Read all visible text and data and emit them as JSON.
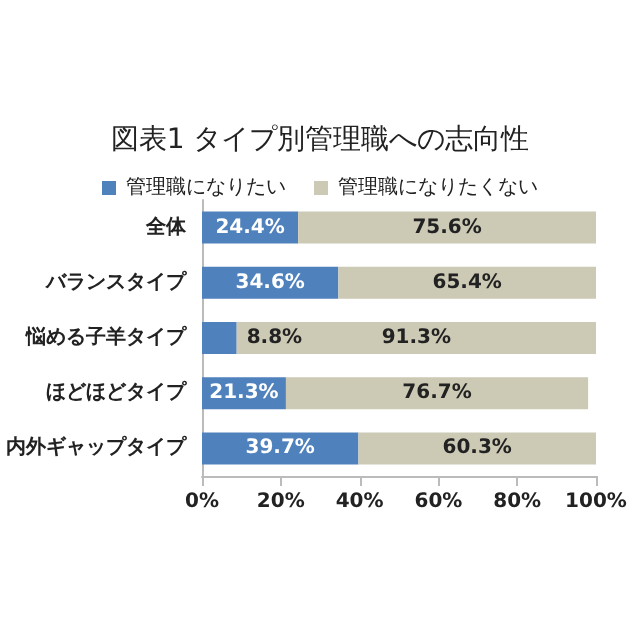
{
  "chart_data": {
    "type": "bar",
    "orientation": "horizontal",
    "stacked": true,
    "title": "図表1 タイプ別管理職への志向性",
    "categories": [
      "全体",
      "バランスタイプ",
      "悩める子羊タイプ",
      "ほどほどタイプ",
      "内外ギャップタイプ"
    ],
    "series": [
      {
        "name": "管理職になりたい",
        "color": "#4f81bd",
        "values": [
          24.4,
          34.6,
          8.8,
          21.3,
          39.7
        ],
        "value_labels": [
          "24.4%",
          "34.6%",
          "8.8%",
          "21.3%",
          "39.7%"
        ]
      },
      {
        "name": "管理職になりたくない",
        "color": "#ccc9b5",
        "values": [
          75.6,
          65.4,
          91.3,
          76.7,
          60.3
        ],
        "value_labels": [
          "75.6%",
          "65.4%",
          "91.3%",
          "76.7%",
          "60.3%"
        ]
      }
    ],
    "xlim": [
      0,
      100
    ],
    "xticks": [
      {
        "value": 0,
        "label": "0%"
      },
      {
        "value": 20,
        "label": "20%"
      },
      {
        "value": 40,
        "label": "40%"
      },
      {
        "value": 60,
        "label": "60%"
      },
      {
        "value": 80,
        "label": "80%"
      },
      {
        "value": 100,
        "label": "100%"
      }
    ],
    "grid": false,
    "legend": "top"
  }
}
